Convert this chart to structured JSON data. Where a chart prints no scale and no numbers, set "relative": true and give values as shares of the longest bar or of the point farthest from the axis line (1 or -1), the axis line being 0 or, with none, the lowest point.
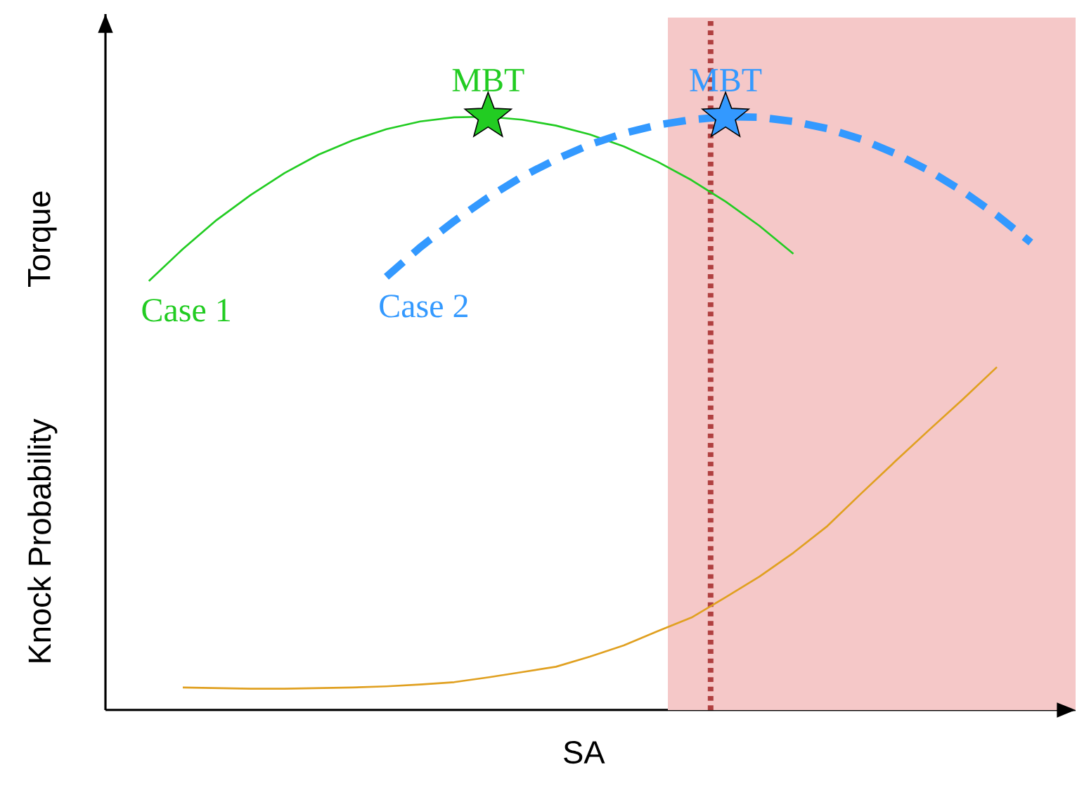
{
  "chart_data": {
    "type": "line",
    "relative": true,
    "xlabel": "SA",
    "ylabel": "Torque",
    "categories": [
      null,
      null,
      null,
      null,
      null,
      null,
      null,
      null,
      null,
      null,
      null,
      null,
      null,
      null,
      null,
      null,
      null,
      null,
      null,
      null,
      null,
      null,
      null,
      null,
      null,
      null,
      null
    ],
    "series": [
      {
        "name": "Case 1",
        "color": "#22cc22",
        "line_style": "solid",
        "values": [
          0.723,
          0.777,
          0.826,
          0.868,
          0.905,
          0.936,
          0.96,
          0.979,
          0.992,
          0.999,
          1.0,
          0.995,
          0.985,
          0.97,
          0.95,
          0.924,
          0.893,
          0.857,
          0.816,
          0.769,
          null,
          null,
          null,
          null,
          null,
          null,
          null
        ]
      },
      {
        "name": "Case 2",
        "color": "#3399ff",
        "line_style": "dashed",
        "values": [
          null,
          null,
          null,
          null,
          null,
          null,
          null,
          0.73,
          0.78,
          0.824,
          0.864,
          0.899,
          0.928,
          0.953,
          0.972,
          0.986,
          0.995,
          1.0,
          0.999,
          0.992,
          0.98,
          0.962,
          0.938,
          0.909,
          0.874,
          0.834,
          0.788
        ]
      },
      {
        "color": "#e0a020",
        "line_style": "solid",
        "values": [
          null,
          0.038,
          0.037,
          0.036,
          0.036,
          0.037,
          0.038,
          0.04,
          0.043,
          0.047,
          0.055,
          0.064,
          0.073,
          0.09,
          0.109,
          0.133,
          0.156,
          0.19,
          0.225,
          0.265,
          0.31,
          0.365,
          0.419,
          0.472,
          0.524,
          0.578,
          null
        ]
      }
    ],
    "annotations": [
      {
        "text": "MBT",
        "y": 1
      },
      {
        "text": "MBT",
        "y": 1
      },
      "Knock Probability"
    ]
  }
}
